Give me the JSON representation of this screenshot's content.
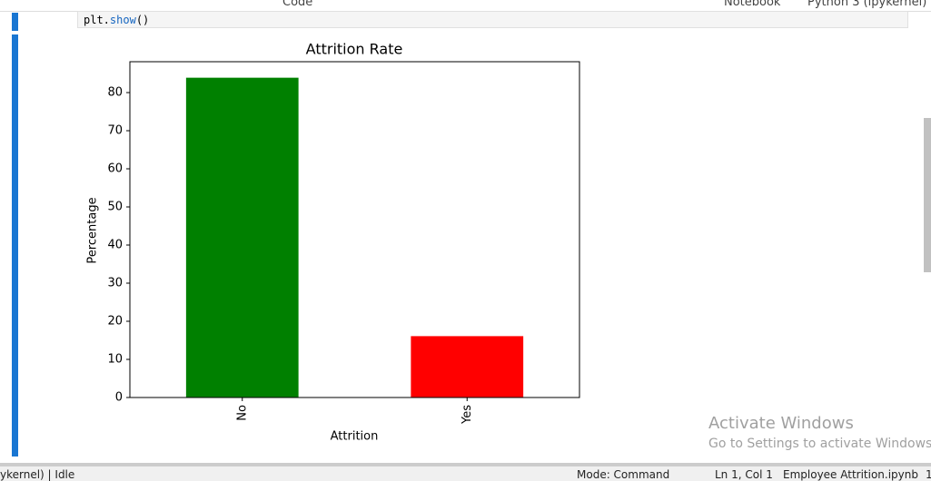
{
  "toolbar": {
    "cell_type": "Code",
    "notebook_label": "Notebook",
    "kernel": "Python 3 (ipykernel)"
  },
  "cell": {
    "code_tokens": [
      "plt.",
      "show",
      "()"
    ]
  },
  "chart_data": {
    "type": "bar",
    "title": "Attrition Rate",
    "x_label": "Attrition",
    "y_label": "Percentage",
    "categories": [
      "No",
      "Yes"
    ],
    "values": [
      83.9,
      16.1
    ],
    "colors": [
      "#008000",
      "#ff0000"
    ],
    "ylim": [
      0,
      88.1
    ],
    "yticks": [
      0,
      10,
      20,
      30,
      40,
      50,
      60,
      70,
      80
    ],
    "grid": false
  },
  "watermark": {
    "title": "Activate Windows",
    "subtitle": "Go to Settings to activate Windows."
  },
  "status_bar": {
    "kernel_state": "ykernel) | Idle",
    "mode": "Mode: Command",
    "position": "Ln 1, Col 1",
    "file": "Employee Attrition.ipynb",
    "extra": "1"
  }
}
